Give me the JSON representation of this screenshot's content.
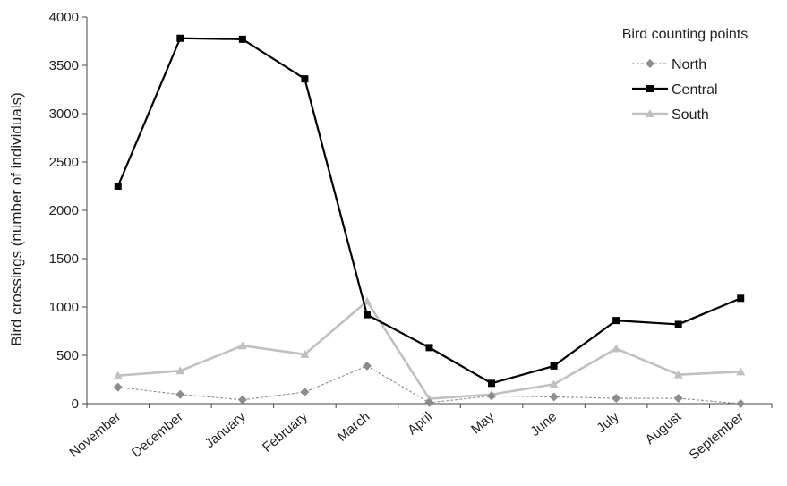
{
  "chart_data": {
    "type": "line",
    "title": "",
    "xlabel": "",
    "ylabel": "Bird crossings (number of individuals)",
    "categories": [
      "November",
      "December",
      "January",
      "February",
      "March",
      "April",
      "May",
      "June",
      "July",
      "August",
      "September"
    ],
    "ylim": [
      0,
      4000
    ],
    "yticks": [
      0,
      500,
      1000,
      1500,
      2000,
      2500,
      3000,
      3500,
      4000
    ],
    "grid": false,
    "legend": {
      "title": "Bird counting points",
      "position": "top-right"
    },
    "series": [
      {
        "name": "North",
        "marker": "diamond",
        "line_style": "dashed",
        "color": "#8c8c8c",
        "values": [
          170,
          95,
          40,
          120,
          390,
          10,
          80,
          70,
          55,
          55,
          0
        ]
      },
      {
        "name": "Central",
        "marker": "square",
        "line_style": "solid",
        "color": "#000000",
        "values": [
          2250,
          3780,
          3770,
          3360,
          920,
          580,
          210,
          390,
          860,
          820,
          1090
        ]
      },
      {
        "name": "South",
        "marker": "triangle",
        "line_style": "solid",
        "color": "#c0c0c0",
        "values": [
          290,
          340,
          600,
          510,
          1060,
          50,
          95,
          200,
          570,
          300,
          330
        ]
      }
    ]
  }
}
